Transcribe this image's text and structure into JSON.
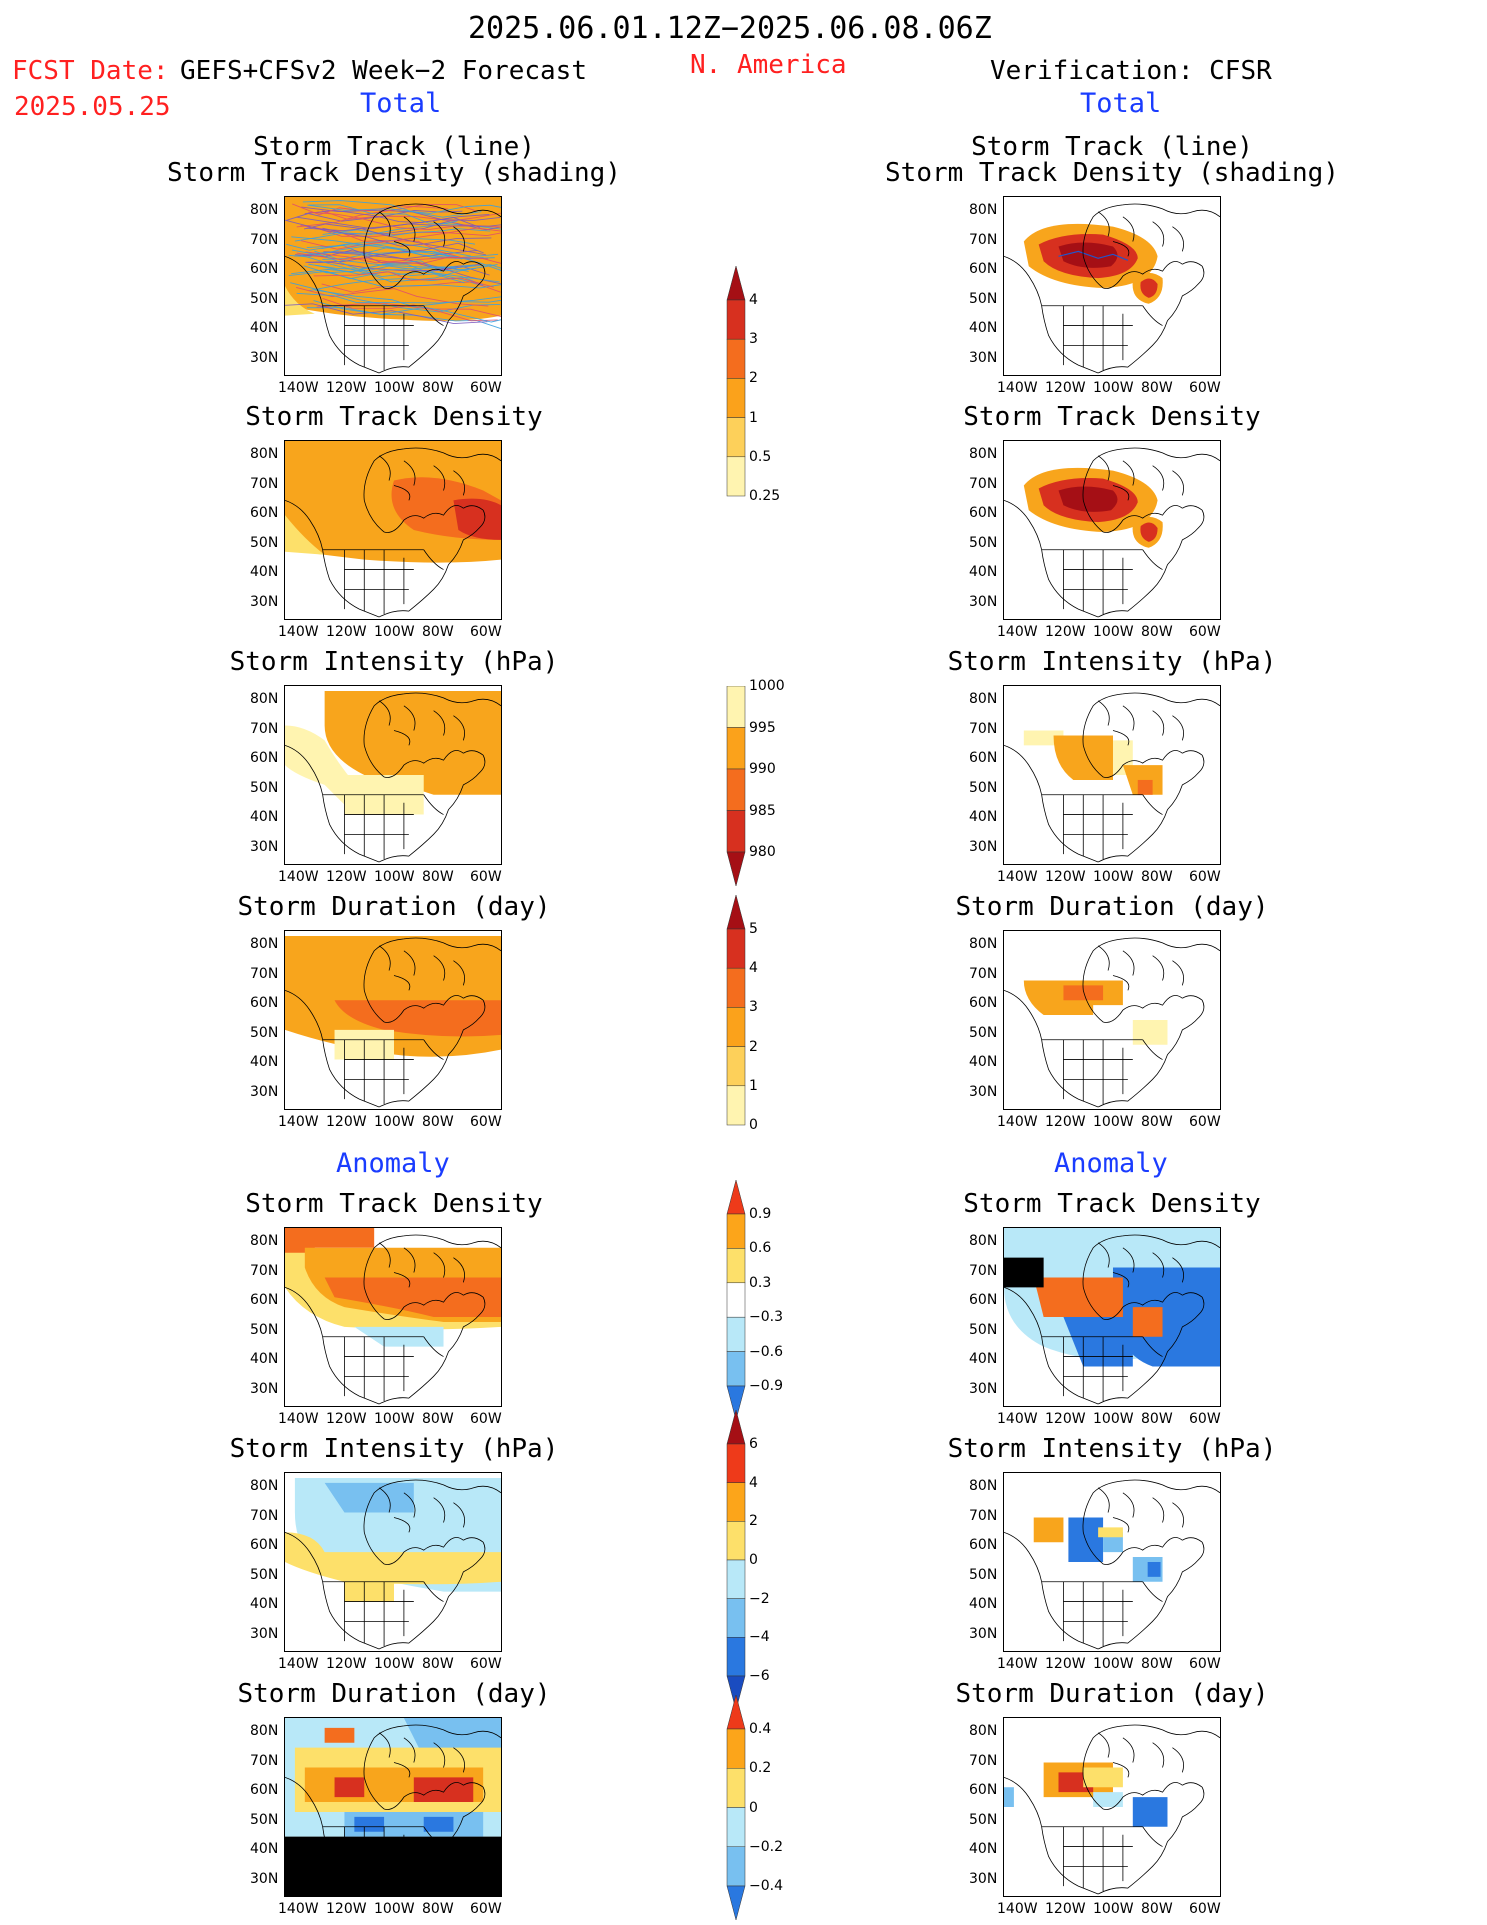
{
  "header": {
    "period": "2025.06.01.12Z−2025.06.08.06Z",
    "fcst_date_label": "FCST Date:",
    "fcst_date": "2025.05.25",
    "model": "GEFS+CFSv2 Week−2 Forecast",
    "region": "N. America",
    "verification": "Verification: CFSR"
  },
  "sections": {
    "total": "Total",
    "anomaly": "Anomaly"
  },
  "panel_titles": {
    "track_line": "Storm Track (line)",
    "track_shading": "Storm Track Density (shading)",
    "density": "Storm Track Density",
    "intensity": "Storm Intensity (hPa)",
    "duration": "Storm Duration (day)"
  },
  "axes": {
    "lat_ticks": [
      "80N",
      "70N",
      "60N",
      "50N",
      "40N",
      "30N"
    ],
    "lon_ticks": [
      "140W",
      "120W",
      "100W",
      "80W",
      "60W"
    ]
  },
  "colorbars": {
    "density_total": {
      "labels": [
        "4",
        "3",
        "2",
        "1",
        "0.5",
        "0.25"
      ],
      "colors": [
        "#a50f15",
        "#d7301f",
        "#f46d1e",
        "#fba21b",
        "#fdd05a",
        "#fff4b0"
      ]
    },
    "intensity_total": {
      "labels": [
        "1000",
        "995",
        "990",
        "985",
        "980"
      ],
      "colors": [
        "#fff4b0",
        "#fba21b",
        "#f46d1e",
        "#d7301f",
        "#a50f15"
      ]
    },
    "duration_total": {
      "labels": [
        "5",
        "4",
        "3",
        "2",
        "1",
        "0"
      ],
      "colors": [
        "#a50f15",
        "#d7301f",
        "#f46d1e",
        "#fba21b",
        "#fdd05a",
        "#fff4b0"
      ]
    },
    "density_anom": {
      "labels": [
        "0.9",
        "0.6",
        "0.3",
        "−0.3",
        "−0.6",
        "−0.9"
      ],
      "colors": [
        "#ee3a1a",
        "#fca51a",
        "#fde06a",
        "#ffffff",
        "#b8e8f8",
        "#78c0f0",
        "#2a78e0"
      ]
    },
    "intensity_anom": {
      "labels": [
        "6",
        "4",
        "2",
        "0",
        "−2",
        "−4",
        "−6"
      ],
      "colors": [
        "#a50f15",
        "#ee3a1a",
        "#fca51a",
        "#fde06a",
        "#b8e8f8",
        "#78c0f0",
        "#2a78e0",
        "#1a4cc0"
      ]
    },
    "duration_anom": {
      "labels": [
        "0.4",
        "0.2",
        "0",
        "−0.2",
        "−0.4"
      ],
      "colors": [
        "#ee3a1a",
        "#fca51a",
        "#fde06a",
        "#b8e8f8",
        "#78c0f0",
        "#2a78e0"
      ]
    }
  },
  "legend_colors": {
    "orange": "#f8a51c",
    "dark_orange": "#f46d1e",
    "red": "#d7301f",
    "dark_red": "#a50f15",
    "yellow": "#fde06a",
    "light_yellow": "#fff4b0",
    "light_blue": "#b8e8f8",
    "mid_blue": "#78c0f0",
    "blue": "#2a78e0",
    "track_line": "#3aa0e0"
  }
}
